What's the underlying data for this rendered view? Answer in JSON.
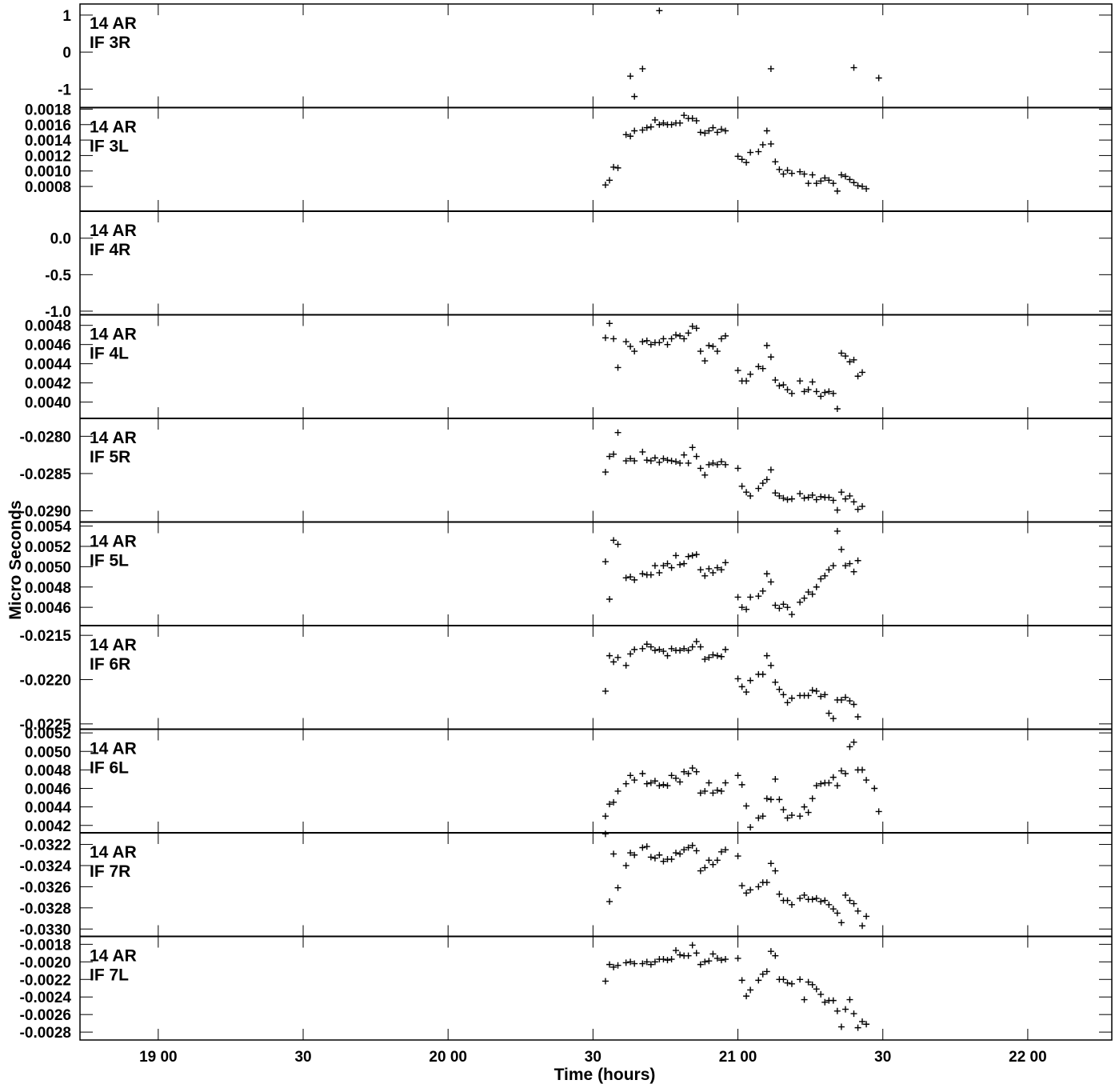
{
  "chart_data": {
    "type": "scatter",
    "xlabel": "Time (hours)",
    "ylabel": "Micro Seconds",
    "x_range_hours": [
      18.73,
      22.29
    ],
    "x_ticks": [
      {
        "value": 19.0,
        "label": "19 00"
      },
      {
        "value": 19.5,
        "label": "30"
      },
      {
        "value": 20.0,
        "label": "20 00"
      },
      {
        "value": 20.5,
        "label": "30"
      },
      {
        "value": 21.0,
        "label": "21 00"
      },
      {
        "value": 21.5,
        "label": "30"
      },
      {
        "value": 22.0,
        "label": "22 00"
      }
    ],
    "x": [
      20.543,
      20.557,
      20.571,
      20.586,
      20.614,
      20.629,
      20.643,
      20.671,
      20.686,
      20.7,
      20.714,
      20.729,
      20.743,
      20.757,
      20.771,
      20.786,
      20.8,
      20.814,
      20.829,
      20.843,
      20.857,
      20.871,
      20.886,
      20.9,
      20.914,
      20.929,
      20.943,
      20.957,
      21.0,
      21.014,
      21.029,
      21.043,
      21.071,
      21.086,
      21.1,
      21.114,
      21.129,
      21.143,
      21.157,
      21.171,
      21.186,
      21.214,
      21.229,
      21.243,
      21.257,
      21.271,
      21.286,
      21.3,
      21.314,
      21.329,
      21.343,
      21.357,
      21.371,
      21.386,
      21.4,
      21.414,
      21.429,
      21.443,
      21.471,
      21.486,
      21.5,
      21.514,
      21.529
    ],
    "panels": [
      {
        "title": "14 AR",
        "subtitle": "IF 3R",
        "ylim": [
          -1.5,
          1.3
        ],
        "ticks": [
          {
            "value": 1,
            "label": "1"
          },
          {
            "value": 0,
            "label": "0"
          },
          {
            "value": -1,
            "label": "-1"
          }
        ],
        "values": [
          null,
          null,
          null,
          null,
          null,
          -0.65,
          -1.2,
          -0.45,
          null,
          null,
          null,
          1.12,
          null,
          null,
          null,
          null,
          null,
          null,
          null,
          null,
          null,
          null,
          null,
          null,
          null,
          null,
          null,
          null,
          null,
          null,
          null,
          null,
          null,
          null,
          null,
          -0.45,
          null,
          null,
          null,
          null,
          null,
          null,
          null,
          null,
          null,
          null,
          null,
          null,
          null,
          null,
          null,
          null,
          null,
          null,
          -0.42,
          null,
          null,
          null,
          null,
          -0.7,
          null,
          null,
          null
        ]
      },
      {
        "title": "14 AR",
        "subtitle": "IF 3L",
        "ylim": [
          0.00048,
          0.00182
        ],
        "ticks": [
          {
            "value": 0.0018,
            "label": "0.0018"
          },
          {
            "value": 0.0016,
            "label": "0.0016"
          },
          {
            "value": 0.0014,
            "label": "0.0014"
          },
          {
            "value": 0.0012,
            "label": "0.0012"
          },
          {
            "value": 0.001,
            "label": "0.0010"
          },
          {
            "value": 0.0008,
            "label": "0.0008"
          }
        ],
        "values": [
          0.00082,
          0.00088,
          0.00105,
          0.00104,
          0.00147,
          0.00145,
          0.00152,
          0.00153,
          0.00156,
          0.00157,
          0.00166,
          0.0016,
          0.00162,
          0.0016,
          0.0016,
          0.00162,
          0.00162,
          0.00172,
          0.00168,
          0.00168,
          0.00165,
          0.0015,
          0.00149,
          0.00152,
          0.00156,
          0.0015,
          0.00154,
          0.00152,
          0.00119,
          0.00115,
          0.00111,
          0.00124,
          0.00125,
          0.00134,
          0.00152,
          0.00135,
          0.00112,
          0.00102,
          0.00096,
          0.00101,
          0.00097,
          0.00099,
          0.00096,
          0.00084,
          0.00095,
          0.00084,
          0.00087,
          0.00091,
          0.00088,
          0.00084,
          0.00074,
          0.00095,
          0.00093,
          0.00089,
          0.00085,
          0.00081,
          0.0008,
          0.00077,
          null,
          null,
          null,
          null,
          null
        ]
      },
      {
        "title": "14 AR",
        "subtitle": "IF 4R",
        "ylim": [
          -1.05,
          0.37
        ],
        "ticks": [
          {
            "value": 0.0,
            "label": "0.0"
          },
          {
            "value": -0.5,
            "label": "-0.5"
          },
          {
            "value": -1.0,
            "label": "-1.0"
          }
        ],
        "values": [
          null,
          null,
          null,
          null,
          null,
          null,
          null,
          null,
          null,
          null,
          null,
          null,
          null,
          null,
          null,
          null,
          null,
          null,
          null,
          null,
          null,
          null,
          null,
          null,
          null,
          null,
          null,
          null,
          null,
          null,
          null,
          null,
          null,
          null,
          null,
          null,
          null,
          null,
          null,
          null,
          null,
          null,
          null,
          null,
          null,
          null,
          null,
          null,
          null,
          null,
          null,
          null,
          null,
          null,
          null,
          null,
          null,
          null,
          null,
          null,
          null,
          null,
          null
        ]
      },
      {
        "title": "14 AR",
        "subtitle": "IF 4L",
        "ylim": [
          0.00383,
          0.00491
        ],
        "ticks": [
          {
            "value": 0.0048,
            "label": "0.0048"
          },
          {
            "value": 0.0046,
            "label": "0.0046"
          },
          {
            "value": 0.0044,
            "label": "0.0044"
          },
          {
            "value": 0.0042,
            "label": "0.0042"
          },
          {
            "value": 0.004,
            "label": "0.0040"
          }
        ],
        "values": [
          0.00467,
          0.00482,
          0.00466,
          0.00436,
          0.00463,
          0.00458,
          0.00453,
          0.00463,
          0.00464,
          0.0046,
          0.00462,
          0.00462,
          0.00466,
          0.0046,
          0.00466,
          0.0047,
          0.00469,
          0.00466,
          0.00472,
          0.00479,
          0.00477,
          0.00453,
          0.00443,
          0.00459,
          0.00458,
          0.00453,
          0.00466,
          0.00469,
          0.00433,
          0.00422,
          0.00422,
          0.00429,
          0.00437,
          0.00435,
          0.00459,
          0.00447,
          0.00423,
          0.00417,
          0.00418,
          0.00413,
          0.00409,
          0.00422,
          0.00411,
          0.00413,
          0.00421,
          0.00411,
          0.00406,
          0.0041,
          0.00411,
          0.00409,
          0.00393,
          0.00451,
          0.00448,
          0.00442,
          0.00444,
          0.00427,
          0.00431,
          null,
          null,
          null,
          null,
          null,
          null
        ]
      },
      {
        "title": "14 AR",
        "subtitle": "IF 5R",
        "ylim": [
          -0.02915,
          -0.02776
        ],
        "ticks": [
          {
            "value": -0.028,
            "label": "-0.0280"
          },
          {
            "value": -0.0285,
            "label": "-0.0285"
          },
          {
            "value": -0.029,
            "label": "-0.0290"
          }
        ],
        "values": [
          -0.02848,
          -0.02827,
          -0.02824,
          -0.02795,
          -0.02833,
          -0.0283,
          -0.02833,
          -0.02821,
          -0.02832,
          -0.02833,
          -0.02829,
          -0.02835,
          -0.0283,
          -0.02832,
          -0.02833,
          -0.02834,
          -0.02836,
          -0.02825,
          -0.02836,
          -0.02815,
          -0.02827,
          -0.02843,
          -0.02852,
          -0.02838,
          -0.02836,
          -0.02838,
          -0.02834,
          -0.02838,
          -0.02843,
          -0.02867,
          -0.02875,
          -0.0288,
          -0.0287,
          -0.02863,
          -0.02858,
          -0.02845,
          -0.02876,
          -0.0288,
          -0.02883,
          -0.02885,
          -0.02884,
          -0.02877,
          -0.02883,
          -0.02882,
          -0.02879,
          -0.02885,
          -0.02881,
          -0.02882,
          -0.02882,
          -0.02886,
          -0.02899,
          -0.02875,
          -0.02884,
          -0.0288,
          -0.02888,
          -0.02898,
          -0.02894,
          null,
          null,
          null,
          null,
          null,
          null
        ]
      },
      {
        "title": "14 AR",
        "subtitle": "IF 5L",
        "ylim": [
          0.00442,
          0.00544
        ],
        "ticks": [
          {
            "value": 0.0054,
            "label": "0.0054"
          },
          {
            "value": 0.0052,
            "label": "0.0052"
          },
          {
            "value": 0.005,
            "label": "0.0050"
          },
          {
            "value": 0.0048,
            "label": "0.0048"
          },
          {
            "value": 0.0046,
            "label": "0.0046"
          }
        ],
        "values": [
          0.00505,
          0.00468,
          0.00526,
          0.00522,
          0.00489,
          0.0049,
          0.00487,
          0.00493,
          0.00492,
          0.00492,
          0.00501,
          0.00494,
          0.00501,
          0.00503,
          0.00499,
          0.00511,
          0.00502,
          0.00503,
          0.0051,
          0.00511,
          0.00512,
          0.00497,
          0.00491,
          0.00498,
          0.00494,
          0.00499,
          0.00497,
          0.00504,
          0.0047,
          0.0046,
          0.00458,
          0.0047,
          0.00471,
          0.00476,
          0.00493,
          0.00485,
          0.00462,
          0.00459,
          0.00463,
          0.0046,
          0.00453,
          0.00465,
          0.00469,
          0.00475,
          0.00473,
          0.0048,
          0.00488,
          0.00491,
          0.00497,
          0.00501,
          0.00535,
          0.00517,
          0.00501,
          0.00503,
          0.00495,
          0.00506,
          null,
          null,
          null,
          null,
          null,
          null,
          null
        ]
      },
      {
        "title": "14 AR",
        "subtitle": "IF 6R",
        "ylim": [
          -0.02256,
          -0.02139
        ],
        "ticks": [
          {
            "value": -0.0215,
            "label": "-0.0215"
          },
          {
            "value": -0.022,
            "label": "-0.0220"
          },
          {
            "value": -0.0225,
            "label": "-0.0225"
          }
        ],
        "values": [
          -0.02213,
          -0.02173,
          -0.0218,
          -0.02175,
          -0.02184,
          -0.02171,
          -0.02166,
          -0.02165,
          -0.0216,
          -0.02163,
          -0.02167,
          -0.02166,
          -0.02168,
          -0.02173,
          -0.02165,
          -0.02167,
          -0.02167,
          -0.02165,
          -0.02167,
          -0.02163,
          -0.02157,
          -0.02163,
          -0.02177,
          -0.02175,
          -0.02172,
          -0.02173,
          -0.02174,
          -0.02166,
          -0.02199,
          -0.02208,
          -0.02214,
          -0.02201,
          -0.02194,
          -0.02194,
          -0.02173,
          -0.02184,
          -0.02203,
          -0.02211,
          -0.02217,
          -0.02226,
          -0.02221,
          -0.02218,
          -0.02218,
          -0.02218,
          -0.02212,
          -0.02213,
          -0.02219,
          -0.02217,
          -0.02238,
          -0.02244,
          -0.02223,
          -0.02223,
          -0.0222,
          -0.02224,
          -0.02228,
          -0.02242,
          null,
          null,
          null,
          null,
          null,
          null,
          null
        ]
      },
      {
        "title": "14 AR",
        "subtitle": "IF 6L",
        "ylim": [
          0.00412,
          0.00524
        ],
        "ticks": [
          {
            "value": 0.0052,
            "label": "0.0052"
          },
          {
            "value": 0.005,
            "label": "0.0050"
          },
          {
            "value": 0.0048,
            "label": "0.0048"
          },
          {
            "value": 0.0046,
            "label": "0.0046"
          },
          {
            "value": 0.0044,
            "label": "0.0044"
          },
          {
            "value": 0.0042,
            "label": "0.0042"
          }
        ],
        "values": [
          0.0043,
          0.00443,
          0.00445,
          0.00457,
          0.00465,
          0.00474,
          0.00469,
          0.00476,
          0.00465,
          0.00466,
          0.00468,
          0.00463,
          0.00464,
          0.00463,
          0.00474,
          0.00471,
          0.00467,
          0.00478,
          0.00476,
          0.00482,
          0.00478,
          0.00455,
          0.00457,
          0.00466,
          0.00455,
          0.00458,
          0.00457,
          0.00466,
          0.00474,
          0.00464,
          0.00441,
          0.00418,
          0.00428,
          0.0043,
          0.00449,
          0.00448,
          0.0047,
          0.00448,
          0.00437,
          0.00428,
          0.00431,
          0.0043,
          0.0044,
          0.00434,
          0.00449,
          0.00463,
          0.00465,
          0.00466,
          0.00466,
          0.00472,
          0.00463,
          0.00479,
          0.00476,
          0.00505,
          0.0051,
          0.0048,
          0.0048,
          0.00469,
          0.0046,
          0.00435,
          null,
          null,
          null
        ]
      },
      {
        "title": "14 AR",
        "subtitle": "IF 7R",
        "ylim": [
          -0.03307,
          -0.03209
        ],
        "ticks": [
          {
            "value": -0.0322,
            "label": "-0.0322"
          },
          {
            "value": -0.0324,
            "label": "-0.0324"
          },
          {
            "value": -0.0326,
            "label": "-0.0326"
          },
          {
            "value": -0.0328,
            "label": "-0.0328"
          },
          {
            "value": -0.033,
            "label": "-0.0330"
          }
        ],
        "values": [
          -0.0321,
          -0.03274,
          -0.03229,
          -0.03261,
          -0.0324,
          -0.03228,
          -0.0323,
          -0.03223,
          -0.03222,
          -0.03232,
          -0.03233,
          -0.0323,
          -0.03236,
          -0.03234,
          -0.03234,
          -0.03228,
          -0.03229,
          -0.03225,
          -0.03223,
          -0.03221,
          -0.03226,
          -0.03245,
          -0.03242,
          -0.03235,
          -0.03239,
          -0.03235,
          -0.03227,
          -0.03225,
          -0.03231,
          -0.03259,
          -0.03266,
          -0.03263,
          -0.0326,
          -0.03256,
          -0.03256,
          -0.03238,
          -0.03245,
          -0.03267,
          -0.03273,
          -0.03273,
          -0.03277,
          -0.03271,
          -0.03268,
          -0.03272,
          -0.03272,
          -0.03271,
          -0.03274,
          -0.03273,
          -0.03277,
          -0.03281,
          -0.03285,
          -0.03294,
          -0.03268,
          -0.03273,
          -0.03276,
          -0.03283,
          -0.03297,
          -0.03288,
          null,
          null,
          null,
          null,
          null
        ]
      },
      {
        "title": "14 AR",
        "subtitle": "IF 7L",
        "ylim": [
          -0.00289,
          -0.00171
        ],
        "ticks": [
          {
            "value": -0.0018,
            "label": "-0.0018"
          },
          {
            "value": -0.002,
            "label": "-0.0020"
          },
          {
            "value": -0.0022,
            "label": "-0.0022"
          },
          {
            "value": -0.0024,
            "label": "-0.0024"
          },
          {
            "value": -0.0026,
            "label": "-0.0026"
          },
          {
            "value": -0.0028,
            "label": "-0.0028"
          }
        ],
        "values": [
          -0.00222,
          -0.00203,
          -0.00206,
          -0.00204,
          -0.00201,
          -0.002,
          -0.00202,
          -0.00202,
          -0.002,
          -0.00203,
          -0.002,
          -0.00197,
          -0.00197,
          -0.00198,
          -0.00197,
          -0.00187,
          -0.00192,
          -0.00193,
          -0.00193,
          -0.00181,
          -0.0019,
          -0.00203,
          -0.002,
          -0.00199,
          -0.00191,
          -0.00196,
          -0.00198,
          -0.00197,
          -0.00196,
          -0.00221,
          -0.00239,
          -0.00232,
          -0.00221,
          -0.00214,
          -0.00211,
          -0.00188,
          -0.00193,
          -0.0022,
          -0.0022,
          -0.00224,
          -0.00225,
          -0.0022,
          -0.00243,
          -0.00223,
          -0.00226,
          -0.00231,
          -0.00237,
          -0.00246,
          -0.00244,
          -0.00244,
          -0.00256,
          -0.00274,
          -0.00254,
          -0.00243,
          -0.00259,
          -0.00275,
          -0.00268,
          -0.00271,
          null,
          null,
          null,
          null,
          null
        ]
      }
    ]
  }
}
